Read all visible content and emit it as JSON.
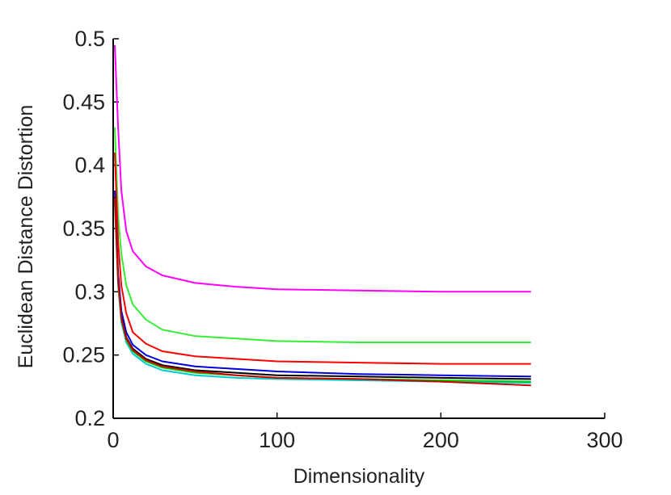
{
  "chart_data": {
    "type": "line",
    "title": "",
    "xlabel": "Dimensionality",
    "ylabel": "Euclidean Distance Distortion",
    "xlim": [
      0,
      300
    ],
    "ylim": [
      0.2,
      0.5
    ],
    "xticks": [
      0,
      100,
      200,
      300
    ],
    "xtick_labels": [
      "0",
      "100",
      "200",
      "300"
    ],
    "yticks": [
      0.2,
      0.25,
      0.3,
      0.35,
      0.4,
      0.45,
      0.5
    ],
    "ytick_labels": [
      "0.2",
      "0.25",
      "0.3",
      "0.35",
      "0.4",
      "0.45",
      "0.5"
    ],
    "grid": false,
    "legend": "none",
    "series": [
      {
        "color": "#ff00ff",
        "x": [
          1,
          3,
          5,
          8,
          12,
          20,
          30,
          50,
          75,
          100,
          150,
          200,
          255
        ],
        "y": [
          0.495,
          0.43,
          0.38,
          0.348,
          0.332,
          0.32,
          0.313,
          0.307,
          0.304,
          0.302,
          0.301,
          0.3,
          0.3
        ]
      },
      {
        "color": "#33ee33",
        "x": [
          1,
          3,
          5,
          8,
          12,
          20,
          30,
          50,
          75,
          100,
          150,
          200,
          255
        ],
        "y": [
          0.43,
          0.36,
          0.33,
          0.305,
          0.29,
          0.278,
          0.27,
          0.265,
          0.263,
          0.261,
          0.26,
          0.26,
          0.26
        ]
      },
      {
        "color": "#ff0000",
        "x": [
          1,
          3,
          5,
          8,
          12,
          20,
          30,
          50,
          75,
          100,
          150,
          200,
          255
        ],
        "y": [
          0.41,
          0.34,
          0.305,
          0.283,
          0.268,
          0.259,
          0.253,
          0.249,
          0.247,
          0.245,
          0.244,
          0.243,
          0.243
        ]
      },
      {
        "color": "#0000dd",
        "x": [
          1,
          3,
          5,
          8,
          12,
          20,
          30,
          50,
          75,
          100,
          150,
          200,
          255
        ],
        "y": [
          0.38,
          0.315,
          0.285,
          0.268,
          0.258,
          0.25,
          0.245,
          0.241,
          0.239,
          0.237,
          0.235,
          0.234,
          0.233
        ]
      },
      {
        "color": "#000000",
        "x": [
          1,
          3,
          5,
          8,
          12,
          20,
          30,
          50,
          75,
          100,
          150,
          200,
          255
        ],
        "y": [
          0.375,
          0.31,
          0.28,
          0.264,
          0.255,
          0.247,
          0.242,
          0.238,
          0.236,
          0.234,
          0.233,
          0.232,
          0.231
        ]
      },
      {
        "color": "#00cccc",
        "x": [
          1,
          3,
          5,
          8,
          12,
          20,
          30,
          50,
          75,
          100,
          150,
          200,
          255
        ],
        "y": [
          0.37,
          0.305,
          0.276,
          0.26,
          0.251,
          0.243,
          0.238,
          0.234,
          0.232,
          0.231,
          0.23,
          0.229,
          0.228
        ]
      },
      {
        "color": "#00cc00",
        "x": [
          1,
          3,
          5,
          8,
          12,
          20,
          30,
          50,
          75,
          100,
          150,
          200,
          255
        ],
        "y": [
          0.372,
          0.307,
          0.278,
          0.262,
          0.253,
          0.245,
          0.24,
          0.236,
          0.234,
          0.232,
          0.231,
          0.23,
          0.229
        ]
      },
      {
        "color": "#cc0000",
        "x": [
          1,
          3,
          5,
          8,
          12,
          20,
          30,
          50,
          75,
          100,
          150,
          200,
          255
        ],
        "y": [
          0.374,
          0.309,
          0.279,
          0.263,
          0.254,
          0.246,
          0.241,
          0.237,
          0.234,
          0.232,
          0.231,
          0.229,
          0.226
        ]
      }
    ]
  }
}
